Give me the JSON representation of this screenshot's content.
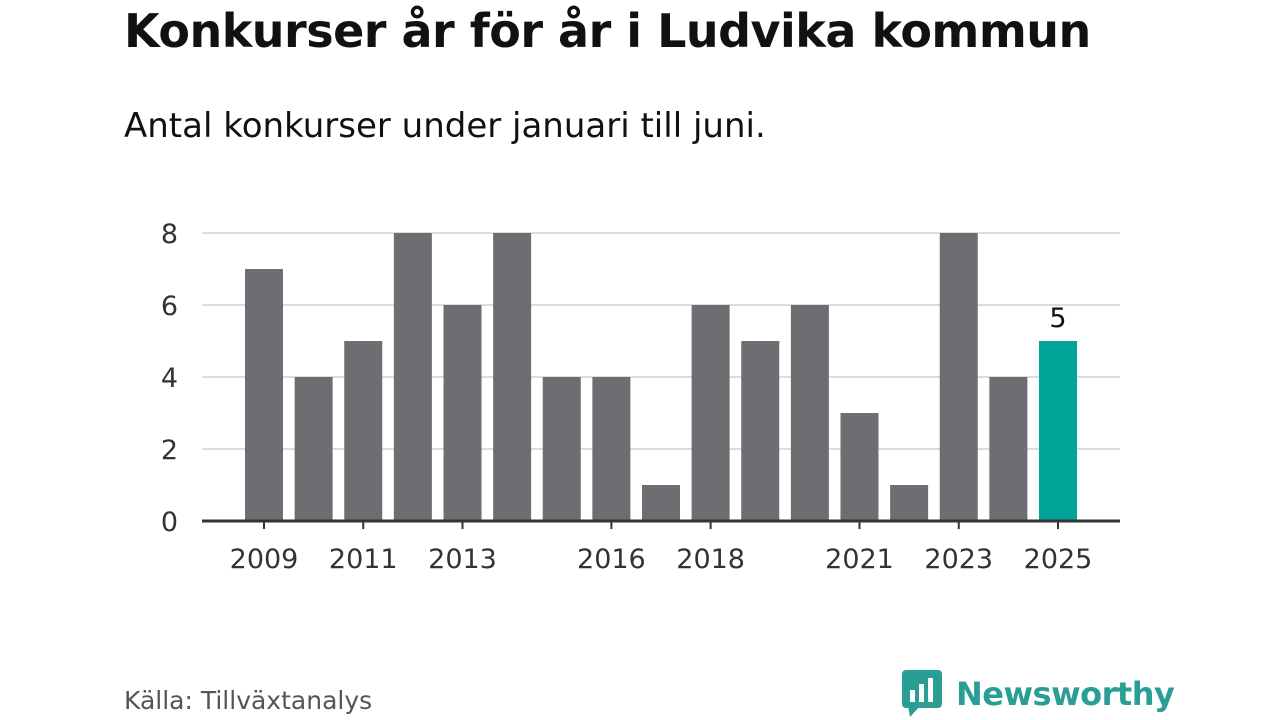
{
  "header": {
    "title": "Konkurser år för år i Ludvika kommun",
    "subtitle": "Antal konkurser under januari till juni."
  },
  "footer": {
    "source": "Källa: Tillväxtanalys",
    "brand": "Newsworthy"
  },
  "colors": {
    "bar": "#6e6d72",
    "highlight": "#00a499",
    "grid": "#dddddd",
    "axis": "#333333",
    "brand": "#2a9d95"
  },
  "chart_data": {
    "type": "bar",
    "categories": [
      "2009",
      "2010",
      "2011",
      "2012",
      "2013",
      "2014",
      "2015",
      "2016",
      "2017",
      "2018",
      "2019",
      "2020",
      "2021",
      "2022",
      "2023",
      "2024",
      "2025"
    ],
    "values": [
      7,
      4,
      5,
      8,
      6,
      8,
      4,
      4,
      1,
      6,
      5,
      6,
      3,
      1,
      8,
      4,
      5
    ],
    "x_tick_labels": [
      "2009",
      "2011",
      "2013",
      "2016",
      "2018",
      "2021",
      "2023",
      "2025"
    ],
    "y_ticks": [
      0,
      2,
      4,
      6,
      8
    ],
    "ylim": [
      0,
      8
    ],
    "highlight_category": "2025",
    "data_labels": [
      {
        "category": "2025",
        "text": "5"
      }
    ],
    "xlabel": "",
    "ylabel": "",
    "grid": true
  }
}
